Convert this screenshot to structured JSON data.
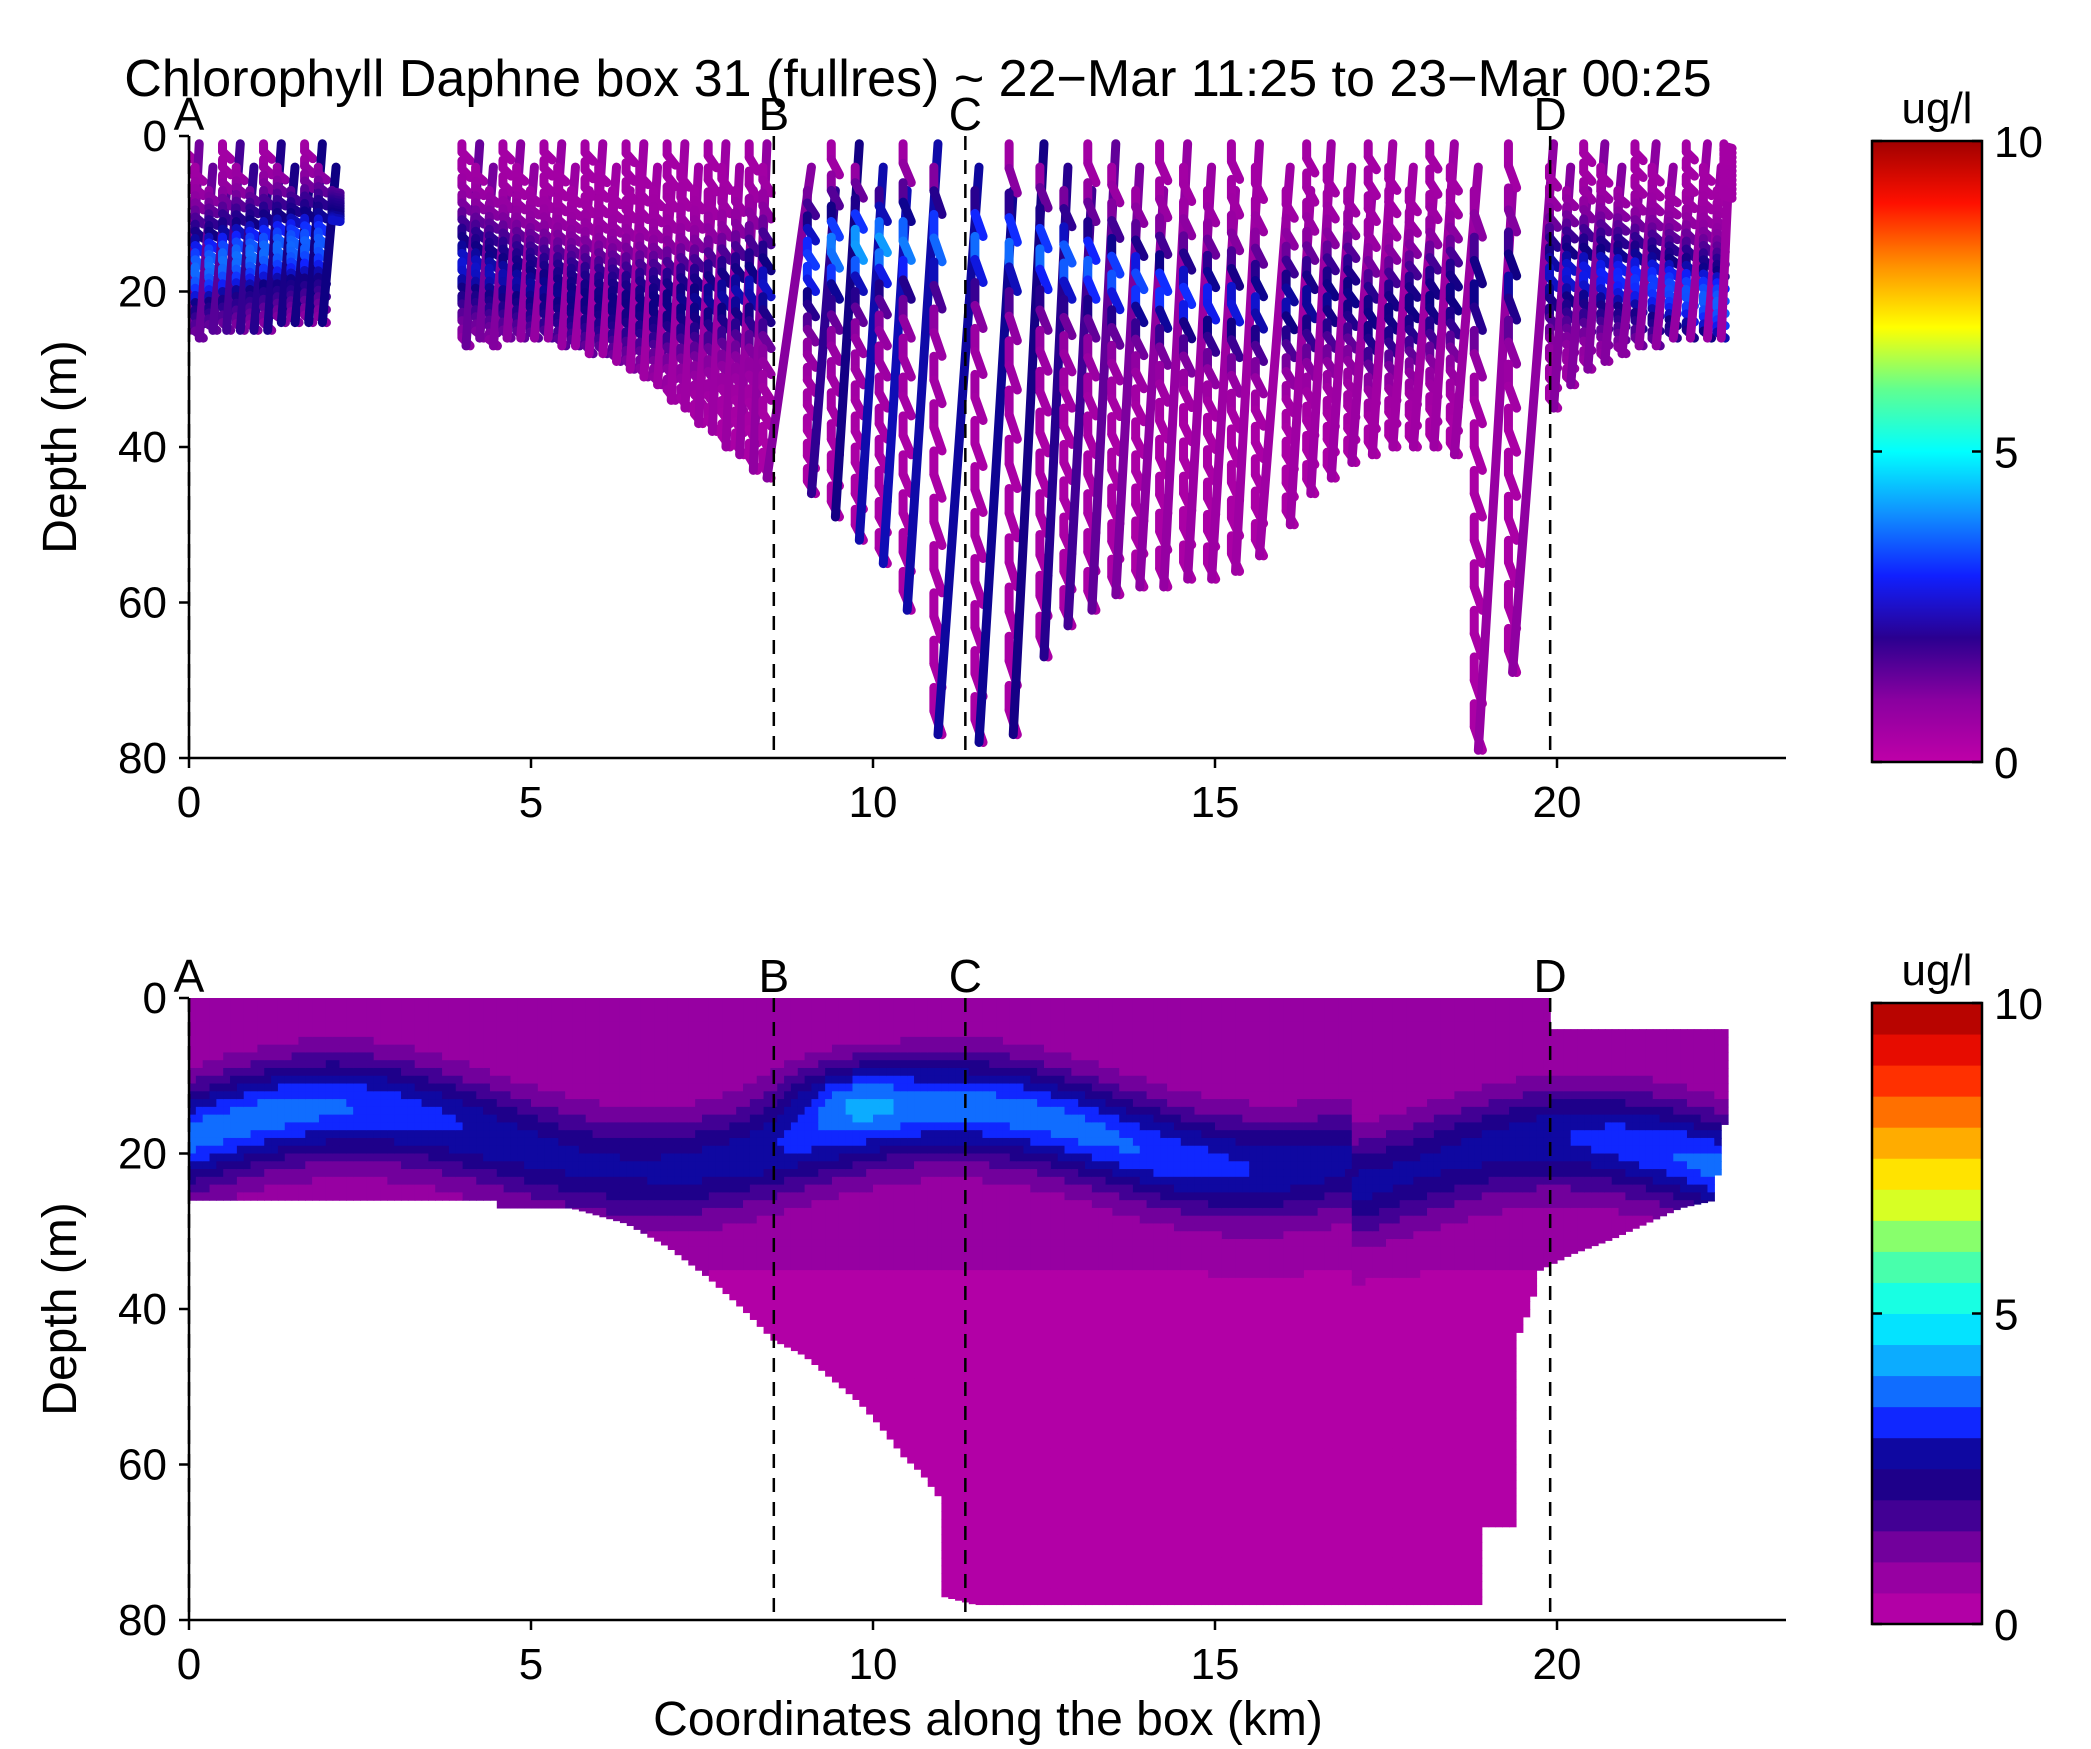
{
  "figure_title": "Chlorophyll Daphne box 31 (fullres) ~ 22−Mar 11:25 to 23−Mar 00:25",
  "chart_data": [
    {
      "type": "heatmap",
      "subtype": "glider yo-yo section (raw samples)",
      "title": "Chlorophyll Daphne box 31 (fullres) ~ 22−Mar 11:25 to 23−Mar 00:25",
      "xlabel": "",
      "ylabel": "Depth (m)",
      "xlim": [
        0,
        23.3
      ],
      "ylim": [
        80,
        0
      ],
      "xticks": [
        0,
        5,
        10,
        15,
        20
      ],
      "yticks": [
        0,
        20,
        40,
        60,
        80
      ],
      "xtick_labels": [
        "0",
        "5",
        "10",
        "15",
        "20"
      ],
      "ytick_labels": [
        "0",
        "20",
        "40",
        "60",
        "80"
      ],
      "section_markers": [
        {
          "label": "A",
          "x": 0.0
        },
        {
          "label": "B",
          "x": 8.55
        },
        {
          "label": "C",
          "x": 11.35
        },
        {
          "label": "D",
          "x": 19.9
        }
      ],
      "colorbar": {
        "label": "ug/l",
        "min": 0,
        "max": 10,
        "ticks": [
          "0",
          "5",
          "10"
        ],
        "style": "continuous"
      },
      "profiles": [
        {
          "x": 0.0,
          "max_depth": 25
        },
        {
          "x": 0.15,
          "max_depth": 26
        },
        {
          "x": 0.35,
          "max_depth": 25
        },
        {
          "x": 0.55,
          "max_depth": 25
        },
        {
          "x": 0.75,
          "max_depth": 25
        },
        {
          "x": 0.95,
          "max_depth": 25
        },
        {
          "x": 1.15,
          "max_depth": 25
        },
        {
          "x": 1.35,
          "max_depth": 24
        },
        {
          "x": 1.55,
          "max_depth": 24
        },
        {
          "x": 1.75,
          "max_depth": 24
        },
        {
          "x": 1.95,
          "max_depth": 24
        },
        {
          "x": 2.15,
          "max_depth": 11
        },
        {
          "x": 4.05,
          "max_depth": 27
        },
        {
          "x": 4.25,
          "max_depth": 26
        },
        {
          "x": 4.45,
          "max_depth": 27
        },
        {
          "x": 4.65,
          "max_depth": 26
        },
        {
          "x": 4.85,
          "max_depth": 26
        },
        {
          "x": 5.05,
          "max_depth": 26
        },
        {
          "x": 5.25,
          "max_depth": 26
        },
        {
          "x": 5.45,
          "max_depth": 27
        },
        {
          "x": 5.65,
          "max_depth": 27
        },
        {
          "x": 5.85,
          "max_depth": 28
        },
        {
          "x": 6.05,
          "max_depth": 28
        },
        {
          "x": 6.25,
          "max_depth": 29
        },
        {
          "x": 6.45,
          "max_depth": 30
        },
        {
          "x": 6.65,
          "max_depth": 31
        },
        {
          "x": 6.85,
          "max_depth": 32
        },
        {
          "x": 7.05,
          "max_depth": 34
        },
        {
          "x": 7.25,
          "max_depth": 35
        },
        {
          "x": 7.45,
          "max_depth": 37
        },
        {
          "x": 7.65,
          "max_depth": 38
        },
        {
          "x": 7.85,
          "max_depth": 40
        },
        {
          "x": 8.05,
          "max_depth": 41
        },
        {
          "x": 8.25,
          "max_depth": 43
        },
        {
          "x": 8.45,
          "max_depth": 44
        },
        {
          "x": 9.1,
          "max_depth": 46
        },
        {
          "x": 9.45,
          "max_depth": 49
        },
        {
          "x": 9.8,
          "max_depth": 52
        },
        {
          "x": 10.15,
          "max_depth": 55
        },
        {
          "x": 10.5,
          "max_depth": 61
        },
        {
          "x": 10.95,
          "max_depth": 77
        },
        {
          "x": 11.55,
          "max_depth": 78
        },
        {
          "x": 12.05,
          "max_depth": 77
        },
        {
          "x": 12.5,
          "max_depth": 67
        },
        {
          "x": 12.85,
          "max_depth": 63
        },
        {
          "x": 13.2,
          "max_depth": 61
        },
        {
          "x": 13.55,
          "max_depth": 59
        },
        {
          "x": 13.9,
          "max_depth": 58
        },
        {
          "x": 14.25,
          "max_depth": 58
        },
        {
          "x": 14.6,
          "max_depth": 57
        },
        {
          "x": 14.95,
          "max_depth": 57
        },
        {
          "x": 15.3,
          "max_depth": 56
        },
        {
          "x": 15.65,
          "max_depth": 54
        },
        {
          "x": 16.1,
          "max_depth": 50
        },
        {
          "x": 16.4,
          "max_depth": 46
        },
        {
          "x": 16.7,
          "max_depth": 44
        },
        {
          "x": 17.0,
          "max_depth": 42
        },
        {
          "x": 17.3,
          "max_depth": 41
        },
        {
          "x": 17.6,
          "max_depth": 40
        },
        {
          "x": 17.9,
          "max_depth": 40
        },
        {
          "x": 18.2,
          "max_depth": 40
        },
        {
          "x": 18.5,
          "max_depth": 41
        },
        {
          "x": 18.85,
          "max_depth": 79
        },
        {
          "x": 19.35,
          "max_depth": 69
        },
        {
          "x": 19.95,
          "max_depth": 35
        },
        {
          "x": 20.2,
          "max_depth": 32
        },
        {
          "x": 20.45,
          "max_depth": 30
        },
        {
          "x": 20.7,
          "max_depth": 29
        },
        {
          "x": 20.95,
          "max_depth": 28
        },
        {
          "x": 21.2,
          "max_depth": 27
        },
        {
          "x": 21.45,
          "max_depth": 27
        },
        {
          "x": 21.7,
          "max_depth": 26
        },
        {
          "x": 21.95,
          "max_depth": 26
        },
        {
          "x": 22.2,
          "max_depth": 26
        },
        {
          "x": 22.4,
          "max_depth": 26
        },
        {
          "x": 22.5,
          "max_depth": 8
        }
      ]
    },
    {
      "type": "heatmap",
      "subtype": "filled contour section (gridded)",
      "title": "",
      "xlabel": "Coordinates along the box (km)",
      "ylabel": "Depth (m)",
      "xlim": [
        0,
        23.3
      ],
      "ylim": [
        80,
        0
      ],
      "xticks": [
        0,
        5,
        10,
        15,
        20
      ],
      "yticks": [
        0,
        20,
        40,
        60,
        80
      ],
      "xtick_labels": [
        "0",
        "5",
        "10",
        "15",
        "20"
      ],
      "ytick_labels": [
        "0",
        "20",
        "40",
        "60",
        "80"
      ],
      "section_markers": [
        {
          "label": "A",
          "x": 0.0
        },
        {
          "label": "B",
          "x": 8.55
        },
        {
          "label": "C",
          "x": 11.35
        },
        {
          "label": "D",
          "x": 19.9
        }
      ],
      "colorbar": {
        "label": "ug/l",
        "min": 0,
        "max": 10,
        "ticks": [
          "0",
          "5",
          "10"
        ],
        "style": "discrete",
        "levels": 20
      },
      "bottom_outline": [
        [
          0,
          26
        ],
        [
          4.5,
          26
        ],
        [
          4.5,
          27
        ],
        [
          5.6,
          27
        ],
        [
          6.4,
          29
        ],
        [
          7.0,
          32
        ],
        [
          7.6,
          36
        ],
        [
          8.1,
          40
        ],
        [
          8.55,
          44
        ],
        [
          9.0,
          46
        ],
        [
          9.4,
          49
        ],
        [
          9.8,
          52
        ],
        [
          10.1,
          55
        ],
        [
          10.45,
          59
        ],
        [
          10.7,
          61
        ],
        [
          10.95,
          64
        ],
        [
          11.05,
          77
        ],
        [
          11.5,
          78
        ],
        [
          18.9,
          78
        ],
        [
          18.9,
          68
        ],
        [
          19.4,
          68
        ],
        [
          19.4,
          44
        ],
        [
          19.6,
          40
        ],
        [
          19.75,
          35
        ],
        [
          20.2,
          33
        ],
        [
          20.8,
          31
        ],
        [
          21.3,
          29
        ],
        [
          21.8,
          27
        ],
        [
          22.3,
          26
        ],
        [
          22.5,
          13
        ]
      ],
      "top_outline": [
        [
          0,
          0
        ],
        [
          19.9,
          0
        ],
        [
          20.1,
          4
        ],
        [
          22.5,
          4
        ]
      ],
      "chlorophyll_features": [
        {
          "desc": "surface low",
          "x_range": [
            0,
            22.5
          ],
          "depth_range": [
            0,
            8
          ],
          "value": 0.5
        },
        {
          "desc": "subsurface maximum core",
          "x": 9.6,
          "depth": 12,
          "value": 4
        }
      ]
    }
  ]
}
